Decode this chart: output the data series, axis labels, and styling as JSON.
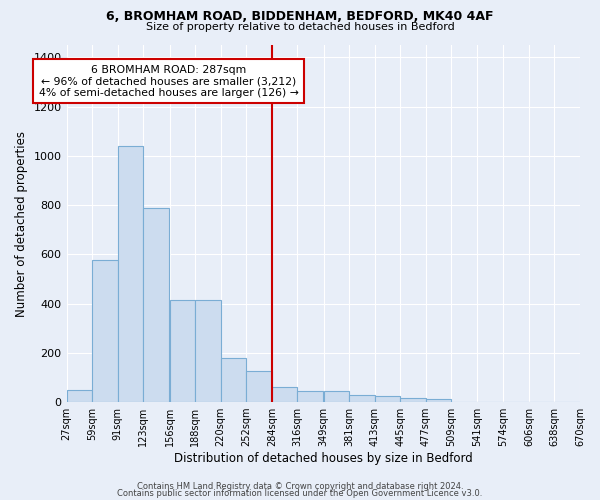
{
  "title1": "6, BROMHAM ROAD, BIDDENHAM, BEDFORD, MK40 4AF",
  "title2": "Size of property relative to detached houses in Bedford",
  "xlabel": "Distribution of detached houses by size in Bedford",
  "ylabel": "Number of detached properties",
  "bar_color": "#ccdcef",
  "bar_edge_color": "#7aadd4",
  "background_color": "#e8eef8",
  "grid_color": "#ffffff",
  "bin_labels": [
    "27sqm",
    "59sqm",
    "91sqm",
    "123sqm",
    "156sqm",
    "188sqm",
    "220sqm",
    "252sqm",
    "284sqm",
    "316sqm",
    "349sqm",
    "381sqm",
    "413sqm",
    "445sqm",
    "477sqm",
    "509sqm",
    "541sqm",
    "574sqm",
    "606sqm",
    "638sqm",
    "670sqm"
  ],
  "bin_edges": [
    27,
    59,
    91,
    123,
    156,
    188,
    220,
    252,
    284,
    316,
    349,
    381,
    413,
    445,
    477,
    509,
    541,
    574,
    606,
    638,
    670
  ],
  "bar_heights": [
    50,
    575,
    1040,
    790,
    415,
    415,
    180,
    125,
    60,
    47,
    47,
    30,
    25,
    18,
    12,
    0,
    0,
    0,
    0,
    0
  ],
  "vline_x": 284,
  "vline_color": "#cc0000",
  "annotation_text": "6 BROMHAM ROAD: 287sqm\n← 96% of detached houses are smaller (3,212)\n4% of semi-detached houses are larger (126) →",
  "annotation_box_color": "#cc0000",
  "annotation_text_color": "#000000",
  "annotation_bg": "#ffffff",
  "footer_text1": "Contains HM Land Registry data © Crown copyright and database right 2024.",
  "footer_text2": "Contains public sector information licensed under the Open Government Licence v3.0.",
  "ylim": [
    0,
    1450
  ],
  "yticks": [
    0,
    200,
    400,
    600,
    800,
    1000,
    1200,
    1400
  ],
  "fig_facecolor": "#e8eef8"
}
